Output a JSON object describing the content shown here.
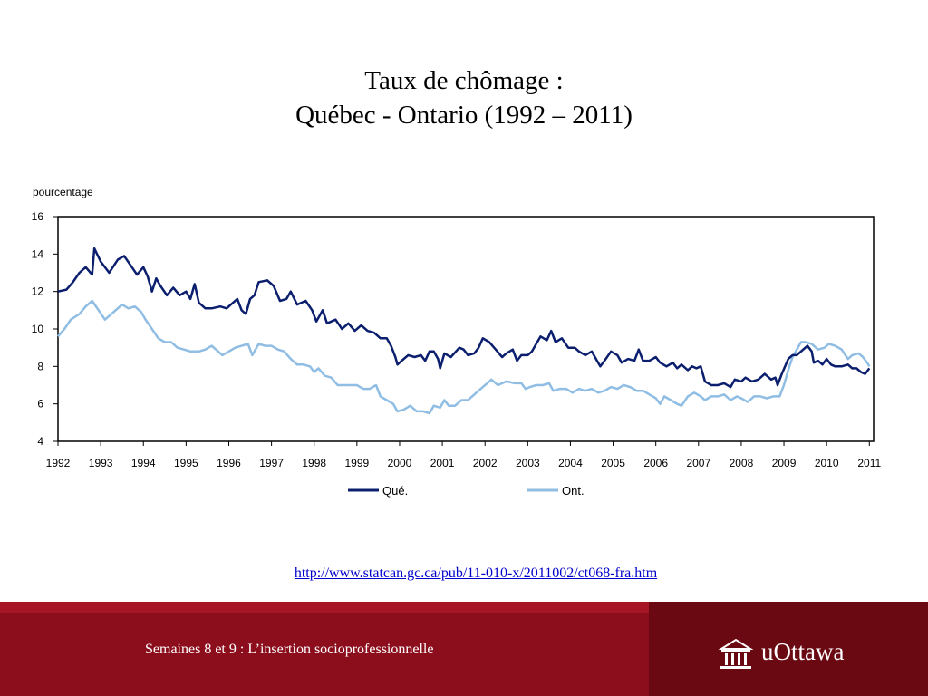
{
  "slide": {
    "title_line1": "Taux de chômage :",
    "title_line2": "Québec - Ontario (1992 – 2011)",
    "source_url": "http://www.statcan.gc.ca/pub/11-010-x/2011002/ct068-fra.htm",
    "footer_text": "Semaines 8 et 9 : L’insertion socioprofessionnelle",
    "logo_text": "uOttawa"
  },
  "colors": {
    "quebec": "#0c1f6e",
    "ontario": "#8fbde3",
    "footer": "#8c0d1c",
    "footer_dark": "#6a0911"
  },
  "chart_data": {
    "type": "line",
    "ylabel": "pourcentage",
    "ylim": [
      4,
      16
    ],
    "yticks": [
      4,
      6,
      8,
      10,
      12,
      14,
      16
    ],
    "xlim": [
      1992,
      2011.1
    ],
    "xticks": [
      "1992",
      "1993",
      "1994",
      "1995",
      "1996",
      "1997",
      "1998",
      "1999",
      "2000",
      "2001",
      "2002",
      "2003",
      "2004",
      "2005",
      "2006",
      "2007",
      "2008",
      "2009",
      "2010",
      "2011"
    ],
    "grid": false,
    "legend_position": "bottom-center",
    "series": [
      {
        "name": "Qué.",
        "color": "#0c1f6e",
        "points": [
          [
            1992.0,
            12.0
          ],
          [
            1992.2,
            12.1
          ],
          [
            1992.35,
            12.5
          ],
          [
            1992.5,
            13.0
          ],
          [
            1992.65,
            13.3
          ],
          [
            1992.8,
            12.9
          ],
          [
            1992.85,
            14.3
          ],
          [
            1993.0,
            13.6
          ],
          [
            1993.2,
            13.0
          ],
          [
            1993.4,
            13.7
          ],
          [
            1993.55,
            13.9
          ],
          [
            1993.7,
            13.4
          ],
          [
            1993.85,
            12.9
          ],
          [
            1994.0,
            13.3
          ],
          [
            1994.1,
            12.8
          ],
          [
            1994.2,
            12.0
          ],
          [
            1994.3,
            12.7
          ],
          [
            1994.4,
            12.3
          ],
          [
            1994.55,
            11.8
          ],
          [
            1994.7,
            12.2
          ],
          [
            1994.85,
            11.8
          ],
          [
            1995.0,
            12.0
          ],
          [
            1995.1,
            11.6
          ],
          [
            1995.2,
            12.4
          ],
          [
            1995.3,
            11.4
          ],
          [
            1995.45,
            11.1
          ],
          [
            1995.6,
            11.1
          ],
          [
            1995.8,
            11.2
          ],
          [
            1995.95,
            11.1
          ],
          [
            1996.05,
            11.3
          ],
          [
            1996.2,
            11.6
          ],
          [
            1996.3,
            11.0
          ],
          [
            1996.4,
            10.8
          ],
          [
            1996.5,
            11.6
          ],
          [
            1996.6,
            11.8
          ],
          [
            1996.7,
            12.5
          ],
          [
            1996.9,
            12.6
          ],
          [
            1997.05,
            12.3
          ],
          [
            1997.2,
            11.5
          ],
          [
            1997.35,
            11.6
          ],
          [
            1997.45,
            12.0
          ],
          [
            1997.6,
            11.3
          ],
          [
            1997.8,
            11.5
          ],
          [
            1997.95,
            11.0
          ],
          [
            1998.05,
            10.4
          ],
          [
            1998.2,
            11.0
          ],
          [
            1998.3,
            10.3
          ],
          [
            1998.5,
            10.5
          ],
          [
            1998.65,
            10.0
          ],
          [
            1998.8,
            10.3
          ],
          [
            1998.95,
            9.9
          ],
          [
            1999.1,
            10.2
          ],
          [
            1999.25,
            9.9
          ],
          [
            1999.4,
            9.8
          ],
          [
            1999.55,
            9.5
          ],
          [
            1999.7,
            9.5
          ],
          [
            1999.8,
            9.1
          ],
          [
            1999.9,
            8.5
          ],
          [
            1999.95,
            8.1
          ],
          [
            2000.05,
            8.3
          ],
          [
            2000.2,
            8.6
          ],
          [
            2000.35,
            8.5
          ],
          [
            2000.5,
            8.6
          ],
          [
            2000.6,
            8.3
          ],
          [
            2000.7,
            8.8
          ],
          [
            2000.8,
            8.8
          ],
          [
            2000.9,
            8.4
          ],
          [
            2000.95,
            7.9
          ],
          [
            2001.05,
            8.7
          ],
          [
            2001.2,
            8.5
          ],
          [
            2001.4,
            9.0
          ],
          [
            2001.5,
            8.9
          ],
          [
            2001.6,
            8.6
          ],
          [
            2001.75,
            8.7
          ],
          [
            2001.85,
            9.0
          ],
          [
            2001.95,
            9.5
          ],
          [
            2002.1,
            9.3
          ],
          [
            2002.25,
            8.9
          ],
          [
            2002.4,
            8.5
          ],
          [
            2002.5,
            8.7
          ],
          [
            2002.65,
            8.9
          ],
          [
            2002.75,
            8.3
          ],
          [
            2002.85,
            8.6
          ],
          [
            2003.0,
            8.6
          ],
          [
            2003.1,
            8.8
          ],
          [
            2003.2,
            9.2
          ],
          [
            2003.3,
            9.6
          ],
          [
            2003.45,
            9.4
          ],
          [
            2003.55,
            9.9
          ],
          [
            2003.65,
            9.3
          ],
          [
            2003.8,
            9.5
          ],
          [
            2003.95,
            9.0
          ],
          [
            2004.1,
            9.0
          ],
          [
            2004.2,
            8.8
          ],
          [
            2004.35,
            8.6
          ],
          [
            2004.5,
            8.8
          ],
          [
            2004.6,
            8.4
          ],
          [
            2004.7,
            8.0
          ],
          [
            2004.8,
            8.3
          ],
          [
            2004.95,
            8.8
          ],
          [
            2005.1,
            8.6
          ],
          [
            2005.2,
            8.2
          ],
          [
            2005.35,
            8.4
          ],
          [
            2005.5,
            8.3
          ],
          [
            2005.6,
            8.9
          ],
          [
            2005.7,
            8.3
          ],
          [
            2005.85,
            8.3
          ],
          [
            2006.0,
            8.5
          ],
          [
            2006.1,
            8.2
          ],
          [
            2006.25,
            8.0
          ],
          [
            2006.4,
            8.2
          ],
          [
            2006.5,
            7.9
          ],
          [
            2006.6,
            8.1
          ],
          [
            2006.75,
            7.8
          ],
          [
            2006.85,
            8.0
          ],
          [
            2006.95,
            7.9
          ],
          [
            2007.05,
            8.0
          ],
          [
            2007.15,
            7.2
          ],
          [
            2007.3,
            7.0
          ],
          [
            2007.45,
            7.0
          ],
          [
            2007.6,
            7.1
          ],
          [
            2007.75,
            6.9
          ],
          [
            2007.85,
            7.3
          ],
          [
            2008.0,
            7.2
          ],
          [
            2008.1,
            7.4
          ],
          [
            2008.25,
            7.2
          ],
          [
            2008.4,
            7.3
          ],
          [
            2008.55,
            7.6
          ],
          [
            2008.7,
            7.3
          ],
          [
            2008.8,
            7.4
          ],
          [
            2008.85,
            7.0
          ],
          [
            2008.95,
            7.6
          ],
          [
            2009.1,
            8.4
          ],
          [
            2009.2,
            8.6
          ],
          [
            2009.3,
            8.6
          ],
          [
            2009.45,
            8.9
          ],
          [
            2009.55,
            9.1
          ],
          [
            2009.65,
            8.8
          ],
          [
            2009.7,
            8.2
          ],
          [
            2009.8,
            8.3
          ],
          [
            2009.9,
            8.1
          ],
          [
            2010.0,
            8.4
          ],
          [
            2010.1,
            8.1
          ],
          [
            2010.2,
            8.0
          ],
          [
            2010.35,
            8.0
          ],
          [
            2010.5,
            8.1
          ],
          [
            2010.6,
            7.9
          ],
          [
            2010.7,
            7.9
          ],
          [
            2010.8,
            7.7
          ],
          [
            2010.9,
            7.6
          ],
          [
            2011.0,
            7.9
          ]
        ]
      },
      {
        "name": "Ont.",
        "color": "#8fbde3",
        "points": [
          [
            1992.0,
            9.6
          ],
          [
            1992.15,
            10.0
          ],
          [
            1992.3,
            10.5
          ],
          [
            1992.5,
            10.8
          ],
          [
            1992.65,
            11.2
          ],
          [
            1992.8,
            11.5
          ],
          [
            1992.95,
            11.0
          ],
          [
            1993.1,
            10.5
          ],
          [
            1993.3,
            10.9
          ],
          [
            1993.5,
            11.3
          ],
          [
            1993.65,
            11.1
          ],
          [
            1993.8,
            11.2
          ],
          [
            1993.95,
            10.9
          ],
          [
            1994.05,
            10.5
          ],
          [
            1994.2,
            10.0
          ],
          [
            1994.35,
            9.5
          ],
          [
            1994.5,
            9.3
          ],
          [
            1994.65,
            9.3
          ],
          [
            1994.8,
            9.0
          ],
          [
            1994.95,
            8.9
          ],
          [
            1995.1,
            8.8
          ],
          [
            1995.3,
            8.8
          ],
          [
            1995.45,
            8.9
          ],
          [
            1995.6,
            9.1
          ],
          [
            1995.7,
            8.9
          ],
          [
            1995.85,
            8.6
          ],
          [
            1996.0,
            8.8
          ],
          [
            1996.15,
            9.0
          ],
          [
            1996.3,
            9.1
          ],
          [
            1996.45,
            9.2
          ],
          [
            1996.55,
            8.6
          ],
          [
            1996.7,
            9.2
          ],
          [
            1996.85,
            9.1
          ],
          [
            1997.0,
            9.1
          ],
          [
            1997.15,
            8.9
          ],
          [
            1997.3,
            8.8
          ],
          [
            1997.45,
            8.4
          ],
          [
            1997.6,
            8.1
          ],
          [
            1997.75,
            8.1
          ],
          [
            1997.9,
            8.0
          ],
          [
            1998.0,
            7.7
          ],
          [
            1998.1,
            7.9
          ],
          [
            1998.25,
            7.5
          ],
          [
            1998.4,
            7.4
          ],
          [
            1998.55,
            7.0
          ],
          [
            1998.7,
            7.0
          ],
          [
            1998.85,
            7.0
          ],
          [
            1999.0,
            7.0
          ],
          [
            1999.15,
            6.8
          ],
          [
            1999.3,
            6.8
          ],
          [
            1999.45,
            7.0
          ],
          [
            1999.55,
            6.4
          ],
          [
            1999.7,
            6.2
          ],
          [
            1999.85,
            6.0
          ],
          [
            1999.95,
            5.6
          ],
          [
            2000.1,
            5.7
          ],
          [
            2000.25,
            5.9
          ],
          [
            2000.4,
            5.6
          ],
          [
            2000.55,
            5.6
          ],
          [
            2000.7,
            5.5
          ],
          [
            2000.8,
            5.9
          ],
          [
            2000.95,
            5.8
          ],
          [
            2001.05,
            6.2
          ],
          [
            2001.15,
            5.9
          ],
          [
            2001.3,
            5.9
          ],
          [
            2001.45,
            6.2
          ],
          [
            2001.6,
            6.2
          ],
          [
            2001.75,
            6.5
          ],
          [
            2001.9,
            6.8
          ],
          [
            2002.05,
            7.1
          ],
          [
            2002.15,
            7.3
          ],
          [
            2002.3,
            7.0
          ],
          [
            2002.5,
            7.2
          ],
          [
            2002.7,
            7.1
          ],
          [
            2002.85,
            7.1
          ],
          [
            2002.95,
            6.8
          ],
          [
            2003.05,
            6.9
          ],
          [
            2003.2,
            7.0
          ],
          [
            2003.35,
            7.0
          ],
          [
            2003.5,
            7.1
          ],
          [
            2003.6,
            6.7
          ],
          [
            2003.75,
            6.8
          ],
          [
            2003.9,
            6.8
          ],
          [
            2004.05,
            6.6
          ],
          [
            2004.2,
            6.8
          ],
          [
            2004.35,
            6.7
          ],
          [
            2004.5,
            6.8
          ],
          [
            2004.65,
            6.6
          ],
          [
            2004.8,
            6.7
          ],
          [
            2004.95,
            6.9
          ],
          [
            2005.1,
            6.8
          ],
          [
            2005.25,
            7.0
          ],
          [
            2005.4,
            6.9
          ],
          [
            2005.55,
            6.7
          ],
          [
            2005.7,
            6.7
          ],
          [
            2005.85,
            6.5
          ],
          [
            2006.0,
            6.3
          ],
          [
            2006.1,
            6.0
          ],
          [
            2006.2,
            6.4
          ],
          [
            2006.35,
            6.2
          ],
          [
            2006.5,
            6.0
          ],
          [
            2006.6,
            5.9
          ],
          [
            2006.75,
            6.4
          ],
          [
            2006.9,
            6.6
          ],
          [
            2007.05,
            6.4
          ],
          [
            2007.15,
            6.2
          ],
          [
            2007.3,
            6.4
          ],
          [
            2007.45,
            6.4
          ],
          [
            2007.6,
            6.5
          ],
          [
            2007.75,
            6.2
          ],
          [
            2007.9,
            6.4
          ],
          [
            2008.0,
            6.3
          ],
          [
            2008.15,
            6.1
          ],
          [
            2008.3,
            6.4
          ],
          [
            2008.45,
            6.4
          ],
          [
            2008.6,
            6.3
          ],
          [
            2008.75,
            6.4
          ],
          [
            2008.9,
            6.4
          ],
          [
            2009.0,
            7.0
          ],
          [
            2009.1,
            7.8
          ],
          [
            2009.2,
            8.5
          ],
          [
            2009.3,
            8.9
          ],
          [
            2009.4,
            9.3
          ],
          [
            2009.5,
            9.3
          ],
          [
            2009.65,
            9.2
          ],
          [
            2009.8,
            8.9
          ],
          [
            2009.95,
            9.0
          ],
          [
            2010.05,
            9.2
          ],
          [
            2010.2,
            9.1
          ],
          [
            2010.35,
            8.9
          ],
          [
            2010.5,
            8.4
          ],
          [
            2010.6,
            8.6
          ],
          [
            2010.75,
            8.7
          ],
          [
            2010.85,
            8.5
          ],
          [
            2010.95,
            8.2
          ],
          [
            2011.0,
            8.0
          ]
        ]
      }
    ]
  }
}
